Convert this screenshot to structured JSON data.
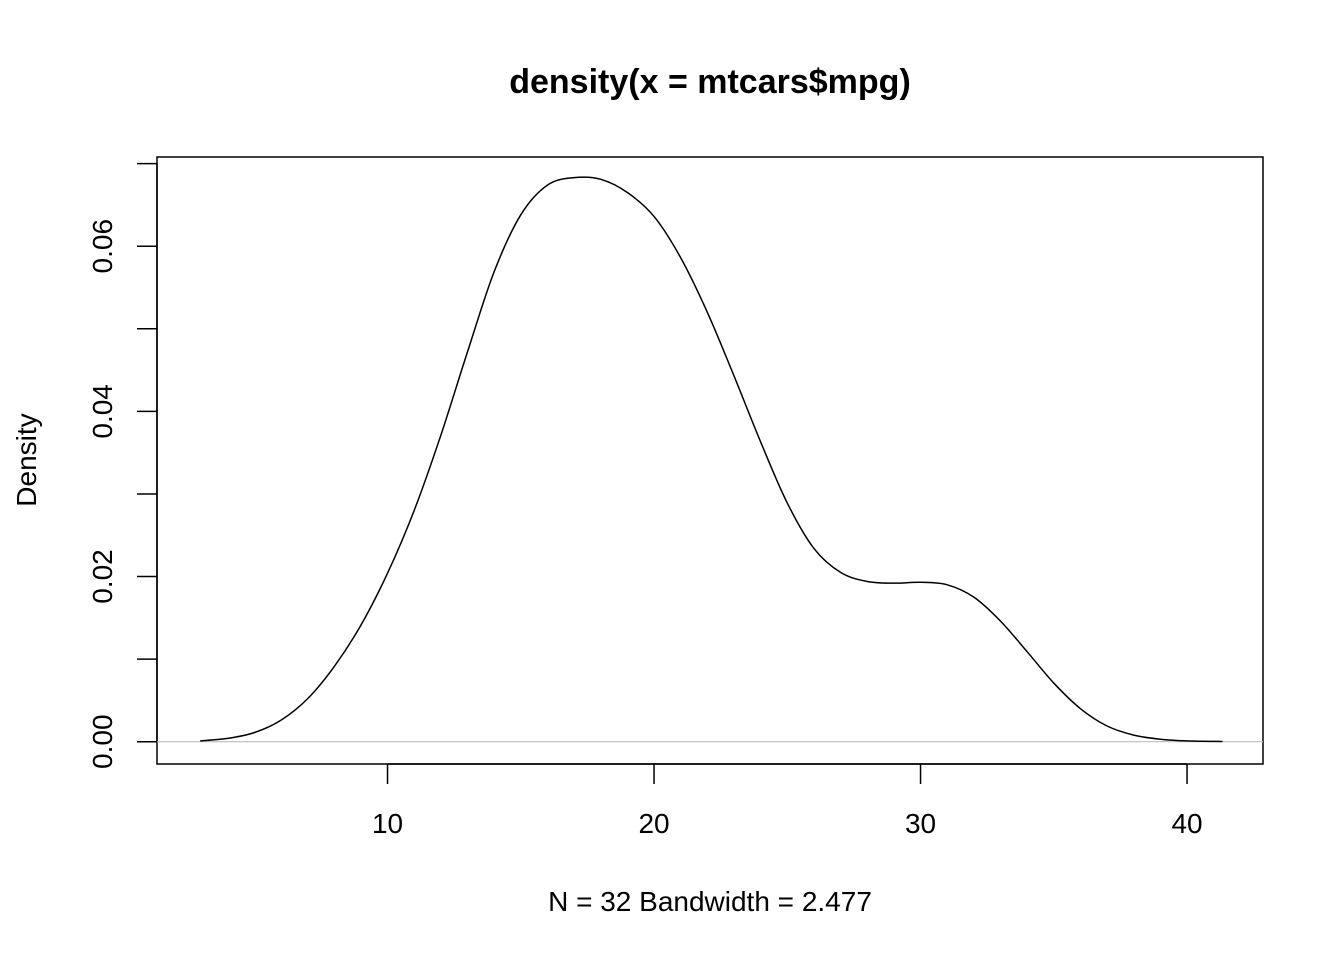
{
  "chart_data": {
    "type": "line",
    "title": "density(x = mtcars$mpg)",
    "xlabel": "N = 32   Bandwidth = 2.477",
    "ylabel": "Density",
    "xlim": [
      1.35,
      42.85
    ],
    "ylim": [
      -0.0027,
      0.0708
    ],
    "x_ticks": [
      10,
      20,
      30,
      40
    ],
    "x_tick_labels": [
      "10",
      "20",
      "30",
      "40"
    ],
    "y_ticks": [
      0.0,
      0.01,
      0.02,
      0.03,
      0.04,
      0.05,
      0.06,
      0.07
    ],
    "y_tick_labels": [
      "0.00",
      "",
      "0.02",
      "",
      "0.04",
      "",
      "0.06",
      ""
    ],
    "grid": false,
    "zero_line": true,
    "zero_line_color": "#bebebe",
    "line_color": "#000000",
    "series": [
      {
        "x": [
          2.97,
          4,
          5,
          6,
          7,
          8,
          9,
          10,
          11,
          12,
          13,
          14,
          15,
          16,
          17,
          18,
          19,
          20,
          21,
          22,
          23,
          24,
          25,
          26,
          27,
          28,
          29,
          30,
          31,
          32,
          33,
          34,
          35,
          36,
          37,
          38,
          39,
          40,
          41.33
        ],
        "y": [
          0.0001,
          0.0004,
          0.0011,
          0.0026,
          0.0052,
          0.0091,
          0.0141,
          0.0204,
          0.028,
          0.0371,
          0.0472,
          0.0569,
          0.0638,
          0.0674,
          0.0683,
          0.0681,
          0.0665,
          0.0636,
          0.0586,
          0.052,
          0.0443,
          0.0363,
          0.0289,
          0.0234,
          0.0205,
          0.0194,
          0.0192,
          0.0193,
          0.019,
          0.0175,
          0.0146,
          0.0109,
          0.0071,
          0.004,
          0.0019,
          0.0008,
          0.0003,
          0.0001,
          3e-05
        ]
      }
    ]
  }
}
